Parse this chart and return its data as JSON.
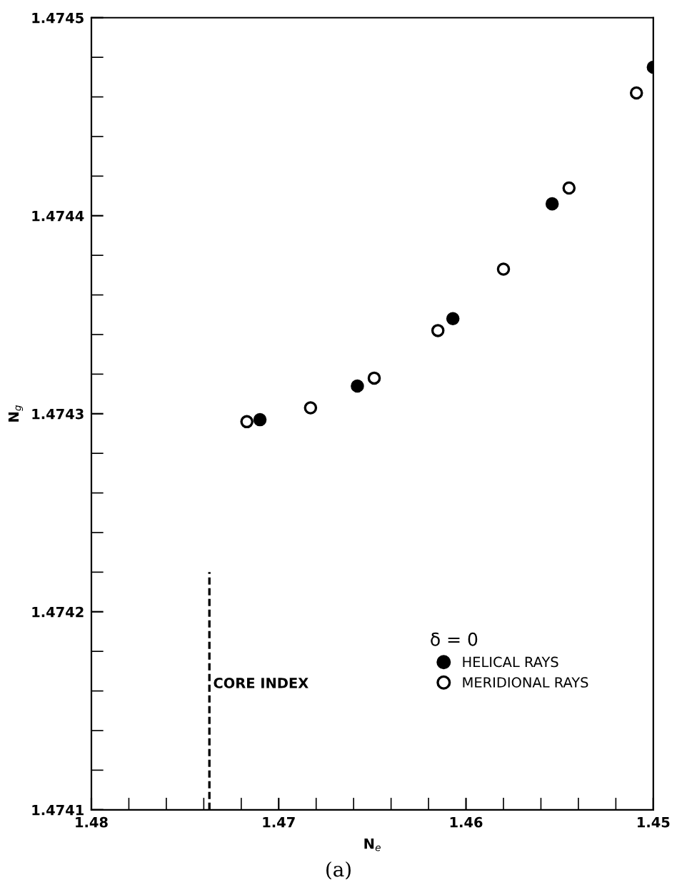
{
  "chart_data": {
    "type": "scatter",
    "xlabel": "N$_{e}$",
    "ylabel": "N$_{g}$",
    "legend_title": "δ = 0",
    "xlim": [
      1.48,
      1.45
    ],
    "xticks": [
      1.48,
      1.47,
      1.46,
      1.45
    ],
    "ylim": [
      1.4741,
      1.4745
    ],
    "yticks": [
      1.4741,
      1.4742,
      1.4743,
      1.4744,
      1.4745
    ],
    "grid": false,
    "legend": "bottom right",
    "marker": "circle",
    "series": [
      {
        "name": "HELICAL RAYS",
        "color": "#000000",
        "x": [
          1.471,
          1.4658,
          1.4607,
          1.4554,
          1.45
        ],
        "values": [
          1.474297,
          1.474314,
          1.474348,
          1.474406,
          1.474475
        ]
      },
      {
        "name": "MERIDIONAL RAYS",
        "color": "#ffffff",
        "x": [
          1.4717,
          1.4683,
          1.4649,
          1.4615,
          1.458,
          1.4545,
          1.4509
        ],
        "values": [
          1.474296,
          1.474303,
          1.474318,
          1.474342,
          1.474373,
          1.474414,
          1.474462
        ]
      },
      {
        "type": "line",
        "color": "#000000",
        "line_style": "dashed",
        "marker": "none",
        "x": [
          1.4737,
          1.4737
        ],
        "values": [
          1.4741,
          1.47422
        ]
      }
    ],
    "annotations": [
      {
        "text": "CORE INDEX",
        "x": 1.4735,
        "y": 1.47416
      },
      "(a)"
    ]
  }
}
